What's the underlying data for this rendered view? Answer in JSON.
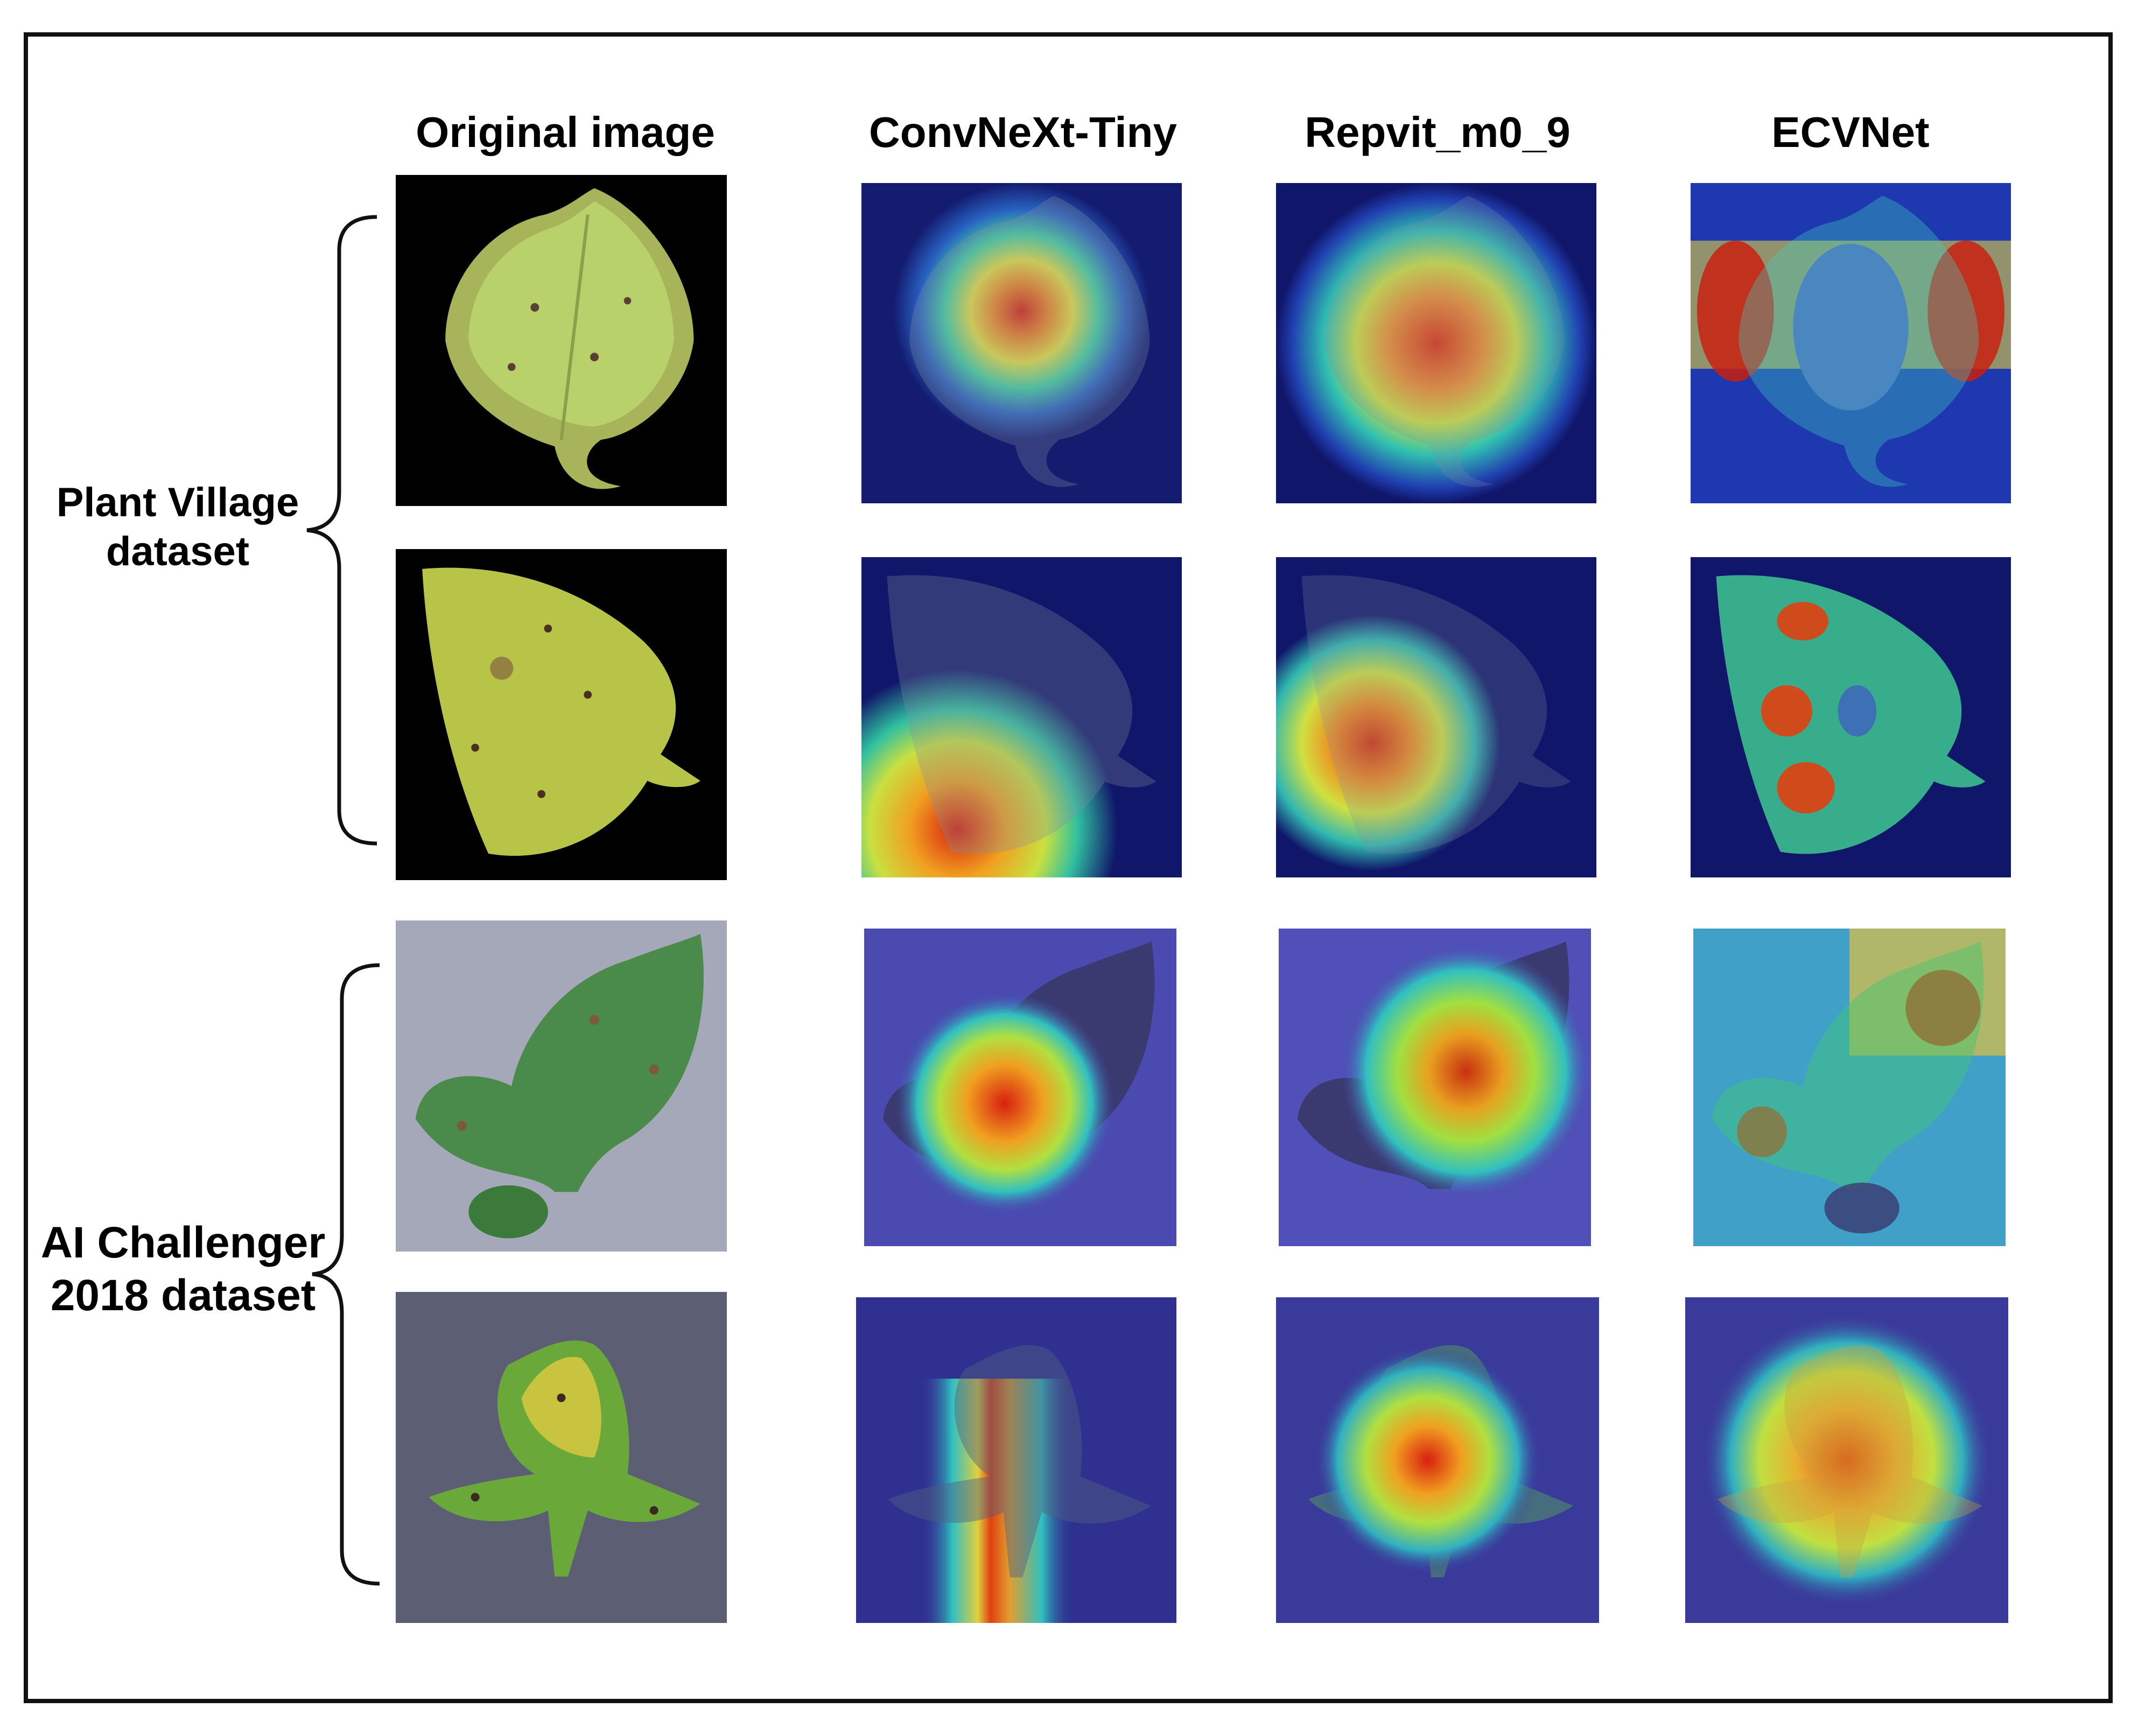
{
  "figure": {
    "columns": [
      "Original image",
      "ConvNeXt-Tiny",
      "Repvit_m0_9",
      "ECVNet"
    ],
    "row_groups": [
      {
        "label_line1": "Plant Village",
        "label_line2": "dataset"
      },
      {
        "label_line1": "AI Challenger",
        "label_line2": "2018 dataset"
      }
    ],
    "colors": {
      "frame": "#111111",
      "pv_background": "#000000",
      "ai_background": "#6a6c84",
      "heatmap_low": "#1a1f8c",
      "heatmap_high": "#d81e10"
    }
  }
}
